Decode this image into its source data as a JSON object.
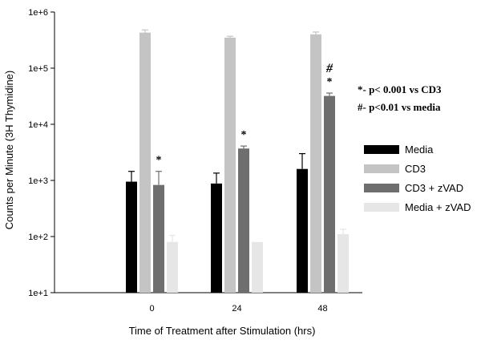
{
  "chart_data": {
    "type": "bar",
    "title": "",
    "xlabel": "Time of Treatment after Stimulation (hrs)",
    "ylabel": "Counts per Minute (3H Thymidine)",
    "yscale": "log",
    "ylim": [
      10,
      1000000
    ],
    "yticks": [
      {
        "value": 10,
        "label": "1e+1"
      },
      {
        "value": 100,
        "label": "1e+2"
      },
      {
        "value": 1000,
        "label": "1e+3"
      },
      {
        "value": 10000,
        "label": "1e+4"
      },
      {
        "value": 100000,
        "label": "1e+5"
      },
      {
        "value": 1000000,
        "label": "1e+6"
      }
    ],
    "categories": [
      "0",
      "24",
      "48"
    ],
    "category_labels": [
      "0",
      "24",
      "48"
    ],
    "series": [
      {
        "name": "Media",
        "color": "#000000",
        "values": [
          950,
          880,
          1600
        ],
        "errors": [
          1450,
          1350,
          3000
        ]
      },
      {
        "name": "CD3",
        "color": "#c4c4c4",
        "values": [
          430000,
          350000,
          400000
        ],
        "errors": [
          480000,
          370000,
          440000
        ]
      },
      {
        "name": "CD3 + zVAD",
        "color": "#6e6e6e",
        "values": [
          830,
          3700,
          32000
        ],
        "errors": [
          1450,
          4100,
          36000
        ]
      },
      {
        "name": "Media + zVAD",
        "color": "#e6e6e6",
        "values": [
          80,
          80,
          110
        ],
        "errors": [
          105,
          null,
          135
        ]
      }
    ],
    "significance_markers": [
      {
        "category": "0",
        "series": "CD3 + zVAD",
        "text": "*"
      },
      {
        "category": "24",
        "series": "CD3 + zVAD",
        "text": "*"
      },
      {
        "category": "48",
        "series": "CD3 + zVAD",
        "text": "*"
      },
      {
        "category": "48",
        "series": "CD3 + zVAD",
        "text": "#"
      }
    ],
    "annotations": [
      "*- p< 0.001 vs CD3",
      "#- p<0.01 vs media"
    ],
    "legend_position": "right",
    "grid": false
  }
}
